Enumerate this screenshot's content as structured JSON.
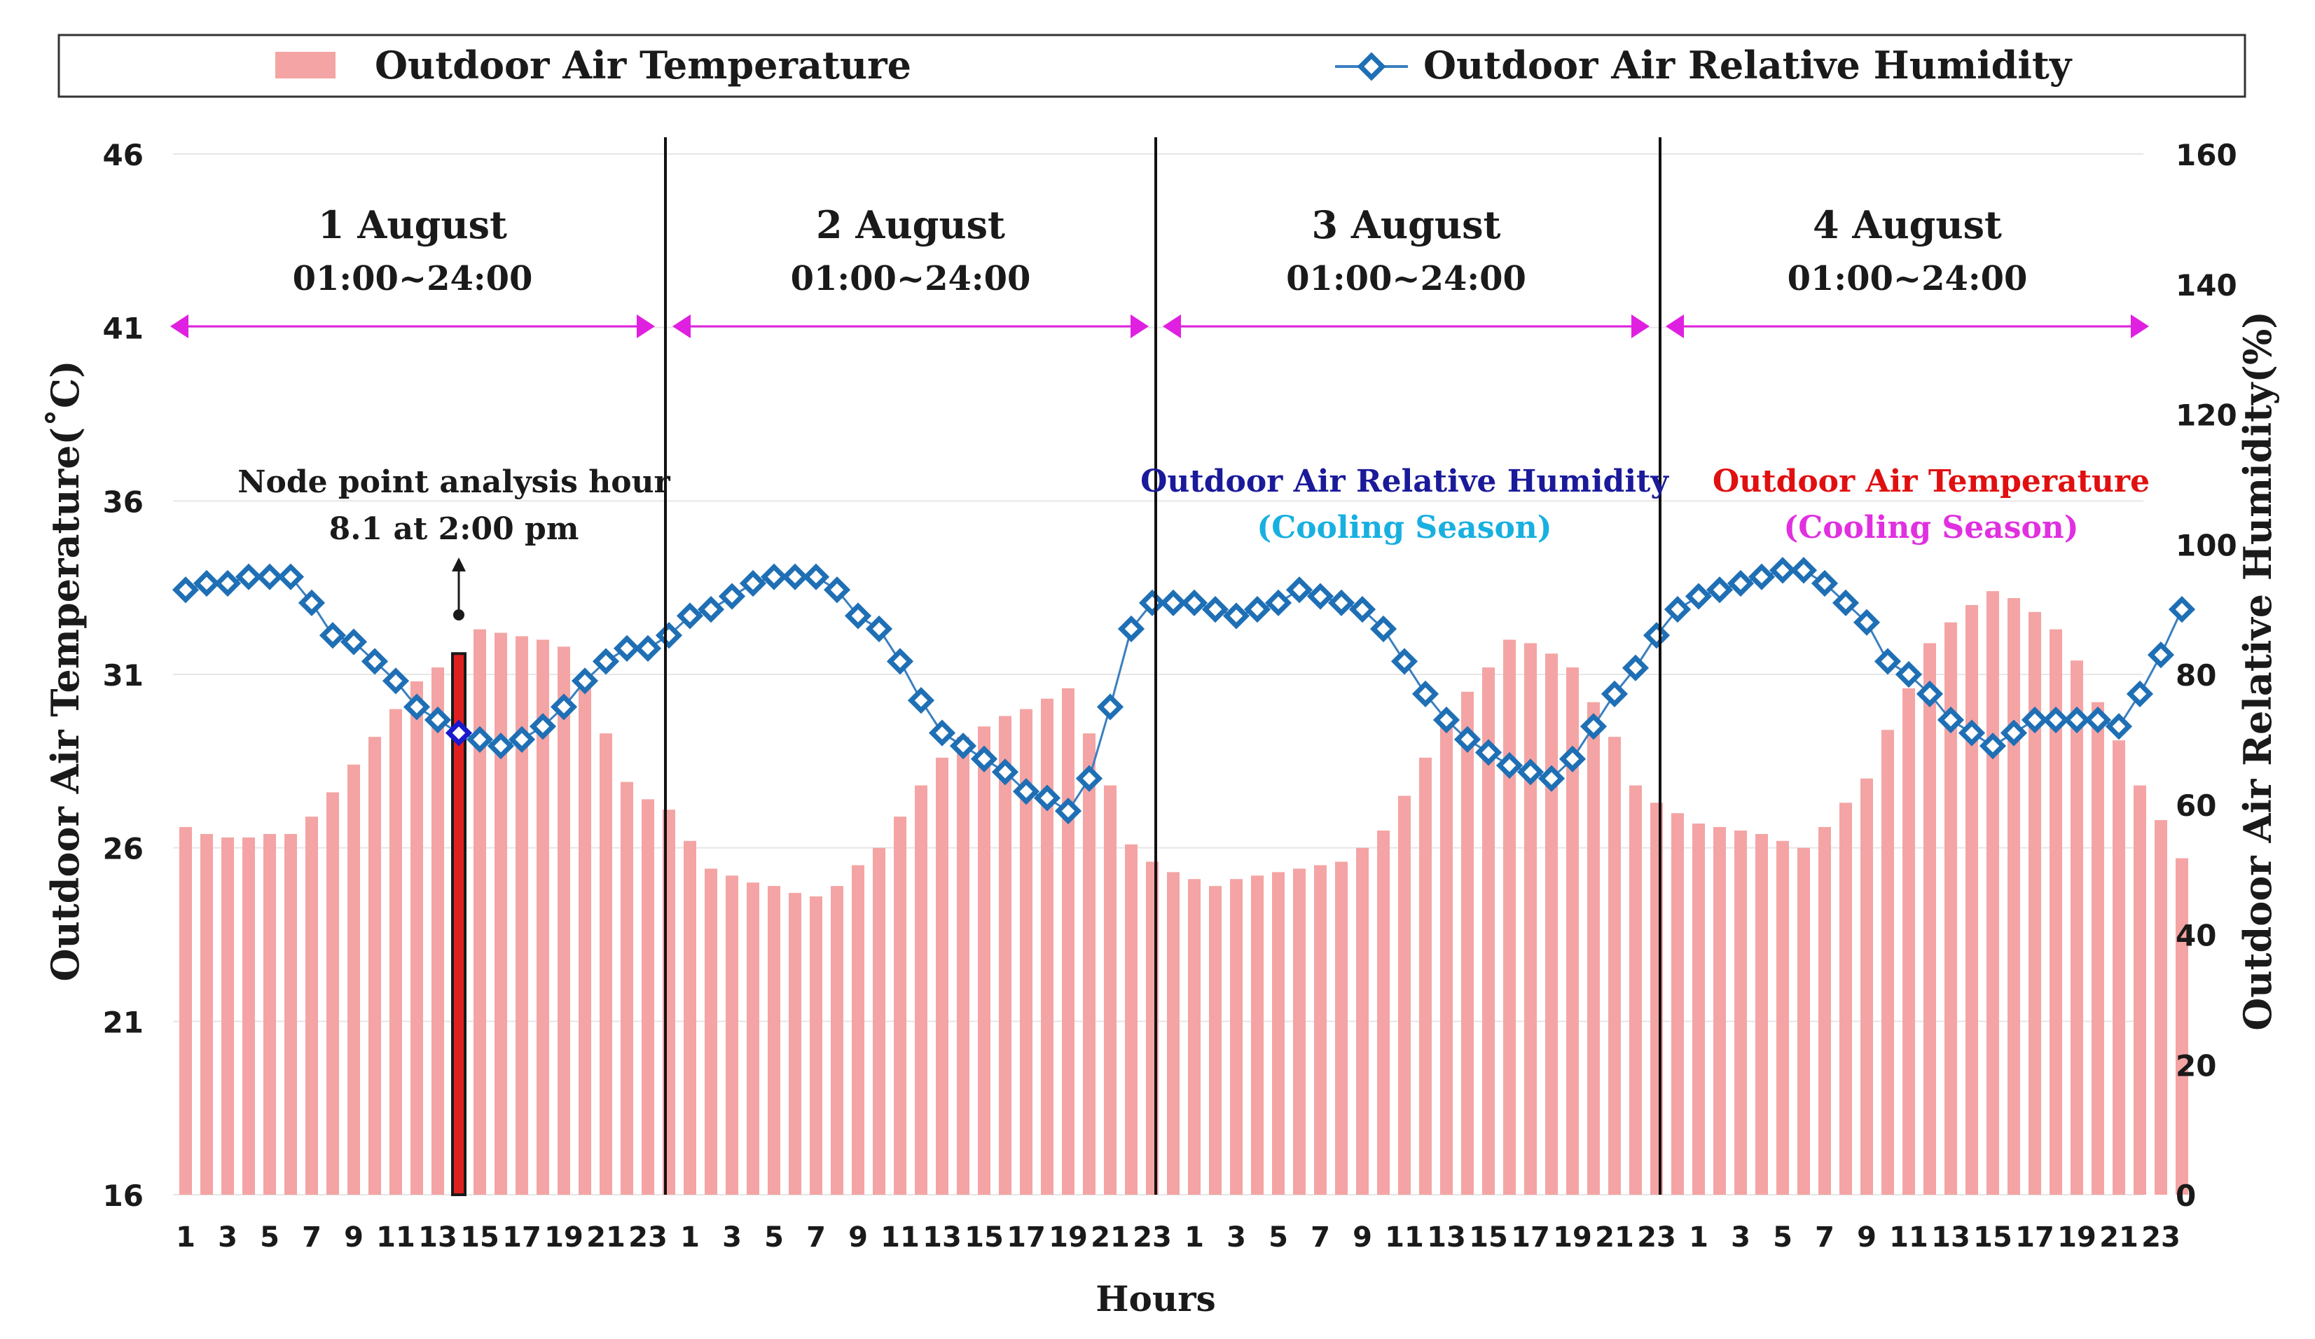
{
  "chart_data": {
    "type": "bar+line",
    "xlabel": "Hours",
    "ylabel_left": "Outdoor Air Temperature(˚C)",
    "ylabel_right": "Outdoor Air Relative Humidity(%)",
    "ylim_left": [
      16,
      46
    ],
    "yticks_left": [
      "46",
      "41",
      "36",
      "31",
      "26",
      "21",
      "16"
    ],
    "ylim_right": [
      0,
      160
    ],
    "yticks_right": [
      "160",
      "140",
      "120",
      "100",
      "80",
      "60",
      "40",
      "20",
      "0"
    ],
    "xtick_labels": [
      "1",
      "3",
      "5",
      "7",
      "9",
      "11",
      "13",
      "15",
      "17",
      "19",
      "21",
      "23"
    ],
    "legend": {
      "temperature": "Outdoor Air Temperature",
      "humidity": "Outdoor Air Relative Humidity"
    },
    "colors": {
      "bar": "#f4a4a4",
      "highlight_bar": "#e02020",
      "line": "#3a7fc0",
      "marker_fill": "#ffffff",
      "marker_edge": "#1f6fb5",
      "range_arrow": "#e020e0"
    },
    "days": [
      {
        "label": "1 August",
        "range": "01:00~24:00",
        "temperature": [
          26.6,
          26.4,
          26.3,
          26.3,
          26.4,
          26.4,
          26.9,
          27.6,
          28.4,
          29.2,
          30.0,
          30.8,
          31.2,
          31.6,
          32.3,
          32.2,
          32.1,
          32.0,
          31.8,
          30.6,
          29.3,
          27.9,
          27.4,
          27.1
        ],
        "humidity": [
          93,
          94,
          94,
          95,
          95,
          95,
          91,
          86,
          85,
          82,
          79,
          75,
          73,
          71,
          70,
          69,
          70,
          72,
          75,
          79,
          82,
          84,
          84,
          86
        ]
      },
      {
        "label": "2 August",
        "range": "01:00~24:00",
        "temperature": [
          26.2,
          25.4,
          25.2,
          25.0,
          24.9,
          24.7,
          24.6,
          24.9,
          25.5,
          26.0,
          26.9,
          27.8,
          28.6,
          29.2,
          29.5,
          29.8,
          30.0,
          30.3,
          30.6,
          29.3,
          27.8,
          26.1,
          25.6,
          25.3
        ],
        "humidity": [
          89,
          90,
          92,
          94,
          95,
          95,
          95,
          93,
          89,
          87,
          82,
          76,
          71,
          69,
          67,
          65,
          62,
          61,
          59,
          64,
          75,
          87,
          91,
          91
        ]
      },
      {
        "label": "3 August",
        "range": "01:00~24:00",
        "temperature": [
          25.1,
          24.9,
          25.1,
          25.2,
          25.3,
          25.4,
          25.5,
          25.6,
          26.0,
          26.5,
          27.5,
          28.6,
          29.6,
          30.5,
          31.2,
          32.0,
          31.9,
          31.6,
          31.2,
          30.2,
          29.2,
          27.8,
          27.3,
          27.0
        ],
        "humidity": [
          91,
          90,
          89,
          90,
          91,
          93,
          92,
          91,
          90,
          87,
          82,
          77,
          73,
          70,
          68,
          66,
          65,
          64,
          67,
          72,
          77,
          81,
          86,
          90
        ]
      },
      {
        "label": "4 August",
        "range": "01:00~24:00",
        "temperature": [
          26.7,
          26.6,
          26.5,
          26.4,
          26.2,
          26.0,
          26.6,
          27.3,
          28.0,
          29.4,
          30.6,
          31.9,
          32.5,
          33.0,
          33.4,
          33.2,
          32.8,
          32.3,
          31.4,
          30.2,
          29.1,
          27.8,
          26.8,
          25.7
        ],
        "humidity": [
          92,
          93,
          94,
          95,
          96,
          96,
          94,
          91,
          88,
          82,
          80,
          77,
          73,
          71,
          69,
          71,
          73,
          73,
          73,
          73,
          72,
          77,
          83,
          90
        ]
      }
    ],
    "highlight": {
      "day_index": 0,
      "hour": 14,
      "label_line1": "Node point analysis hour",
      "label_line2": "8.1 at 2:00 pm"
    },
    "annotations": {
      "rh_title": "Outdoor Air Relative Humidity",
      "rh_sub": "(Cooling Season)",
      "temp_title": "Outdoor Air Temperature",
      "temp_sub": "(Cooling Season)"
    },
    "annotation_colors": {
      "rh_title": "#1a1a9a",
      "rh_sub": "#18b0e0",
      "temp_title": "#e01010",
      "temp_sub": "#e030e0"
    }
  }
}
